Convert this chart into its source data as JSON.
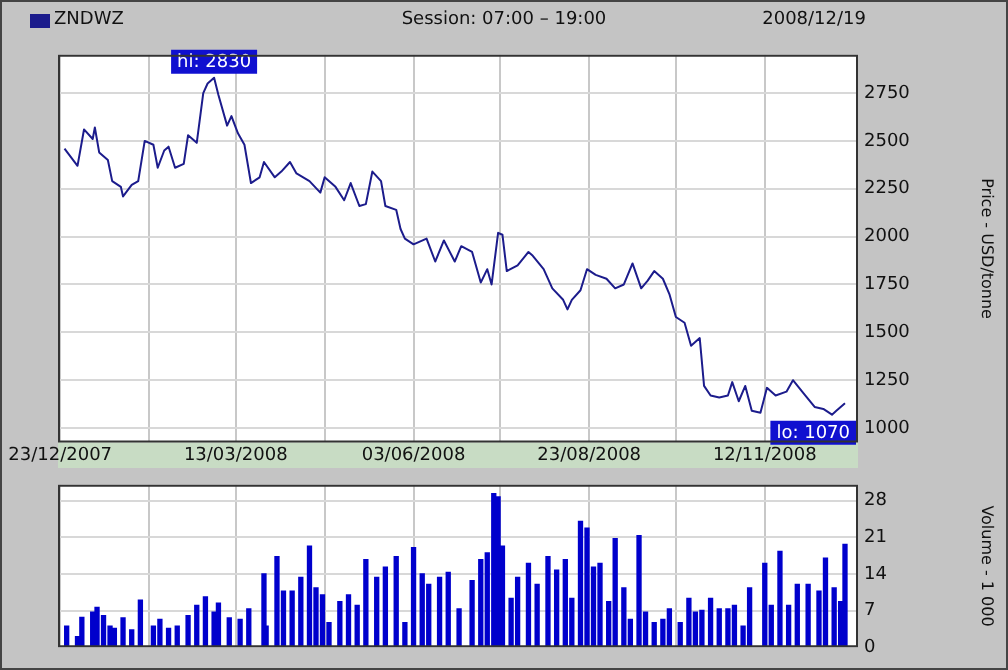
{
  "chart_data": [
    {
      "type": "line",
      "subtitle": "Session: 07:00 – 19:00",
      "ylabel": "Price - USD/tonne",
      "legend": "top left",
      "grid": true,
      "marker": "none",
      "line_style": "solid",
      "annotations": [
        "2008/12/19",
        {
          "text": "hi: 2830",
          "x": "2008-03-03",
          "y": 2830
        },
        {
          "text": "lo: 1070",
          "x": "2008-12-13",
          "y": 1070
        }
      ],
      "xlim": [
        "2007-12-22",
        "2008-12-25"
      ],
      "xticks": [
        {
          "value": "2007-12-23",
          "label": "23/12/2007"
        },
        {
          "value": "2008-02-02",
          "label": null
        },
        {
          "value": "2008-03-13",
          "label": "13/03/2008"
        },
        {
          "value": "2008-04-23",
          "label": null
        },
        {
          "value": "2008-06-03",
          "label": "03/06/2008"
        },
        {
          "value": "2008-07-13",
          "label": null
        },
        {
          "value": "2008-08-23",
          "label": "23/08/2008"
        },
        {
          "value": "2008-10-02",
          "label": null
        },
        {
          "value": "2008-11-12",
          "label": "12/11/2008"
        }
      ],
      "ylim": [
        925,
        2950
      ],
      "yticks": [
        1000,
        1250,
        1500,
        1750,
        2000,
        2250,
        2500,
        2750
      ],
      "series": [
        {
          "name": "ZNDWZ",
          "color": "#1c1c8c",
          "x": [
            "2007-12-25",
            "2007-12-31",
            "2008-01-03",
            "2008-01-07",
            "2008-01-08",
            "2008-01-10",
            "2008-01-14",
            "2008-01-16",
            "2008-01-20",
            "2008-01-21",
            "2008-01-25",
            "2008-01-28",
            "2008-01-31",
            "2008-02-04",
            "2008-02-06",
            "2008-02-09",
            "2008-02-11",
            "2008-02-14",
            "2008-02-18",
            "2008-02-20",
            "2008-02-24",
            "2008-02-27",
            "2008-02-29",
            "2008-03-03",
            "2008-03-05",
            "2008-03-09",
            "2008-03-11",
            "2008-03-14",
            "2008-03-17",
            "2008-03-20",
            "2008-03-24",
            "2008-03-26",
            "2008-03-31",
            "2008-04-03",
            "2008-04-07",
            "2008-04-10",
            "2008-04-16",
            "2008-04-21",
            "2008-04-23",
            "2008-04-28",
            "2008-05-02",
            "2008-05-05",
            "2008-05-09",
            "2008-05-12",
            "2008-05-15",
            "2008-05-19",
            "2008-05-21",
            "2008-05-26",
            "2008-05-28",
            "2008-05-30",
            "2008-06-03",
            "2008-06-09",
            "2008-06-13",
            "2008-06-17",
            "2008-06-22",
            "2008-06-25",
            "2008-06-30",
            "2008-07-04",
            "2008-07-07",
            "2008-07-09",
            "2008-07-12",
            "2008-07-14",
            "2008-07-16",
            "2008-07-21",
            "2008-07-26",
            "2008-07-28",
            "2008-08-02",
            "2008-08-06",
            "2008-08-11",
            "2008-08-13",
            "2008-08-15",
            "2008-08-19",
            "2008-08-22",
            "2008-08-26",
            "2008-08-31",
            "2008-09-04",
            "2008-09-08",
            "2008-09-12",
            "2008-09-16",
            "2008-09-19",
            "2008-09-22",
            "2008-09-26",
            "2008-09-29",
            "2008-10-02",
            "2008-10-06",
            "2008-10-09",
            "2008-10-13",
            "2008-10-15",
            "2008-10-18",
            "2008-10-22",
            "2008-10-26",
            "2008-10-28",
            "2008-10-31",
            "2008-11-03",
            "2008-11-06",
            "2008-11-10",
            "2008-11-13",
            "2008-11-17",
            "2008-11-22",
            "2008-11-25",
            "2008-11-30",
            "2008-12-05",
            "2008-12-09",
            "2008-12-13",
            "2008-12-15",
            "2008-12-19"
          ],
          "values": [
            2460,
            2370,
            2560,
            2510,
            2570,
            2440,
            2400,
            2290,
            2260,
            2210,
            2270,
            2290,
            2500,
            2480,
            2360,
            2450,
            2470,
            2360,
            2380,
            2530,
            2490,
            2750,
            2800,
            2830,
            2740,
            2580,
            2630,
            2540,
            2480,
            2280,
            2310,
            2390,
            2310,
            2340,
            2390,
            2330,
            2290,
            2230,
            2310,
            2260,
            2190,
            2280,
            2160,
            2170,
            2340,
            2290,
            2160,
            2140,
            2040,
            1990,
            1960,
            1990,
            1870,
            1980,
            1870,
            1950,
            1920,
            1760,
            1830,
            1750,
            2020,
            2010,
            1820,
            1850,
            1920,
            1900,
            1830,
            1730,
            1670,
            1620,
            1670,
            1720,
            1830,
            1800,
            1780,
            1730,
            1750,
            1860,
            1730,
            1770,
            1820,
            1780,
            1700,
            1580,
            1550,
            1430,
            1470,
            1220,
            1170,
            1160,
            1170,
            1240,
            1140,
            1220,
            1090,
            1080,
            1210,
            1170,
            1190,
            1250,
            1180,
            1110,
            1100,
            1070,
            1090,
            1130
          ]
        }
      ]
    },
    {
      "type": "bar",
      "ylabel": "Volume - 1 000",
      "grid": true,
      "tick_labels": "y",
      "color": "#0000cc",
      "xlim": [
        "2007-12-22",
        "2008-12-25"
      ],
      "xticks": [
        {
          "value": "2007-12-23",
          "label": null
        },
        {
          "value": "2008-02-02",
          "label": null
        },
        {
          "value": "2008-03-13",
          "label": null
        },
        {
          "value": "2008-04-23",
          "label": null
        },
        {
          "value": "2008-06-03",
          "label": null
        },
        {
          "value": "2008-07-13",
          "label": null
        },
        {
          "value": "2008-08-23",
          "label": null
        },
        {
          "value": "2008-10-02",
          "label": null
        },
        {
          "value": "2008-11-12",
          "label": null
        }
      ],
      "ylim": [
        0,
        31
      ],
      "yticks": [
        0,
        7,
        14,
        21,
        28
      ],
      "x": [
        "2007-12-26",
        "2007-12-31",
        "2008-01-02",
        "2008-01-07",
        "2008-01-09",
        "2008-01-12",
        "2008-01-15",
        "2008-01-17",
        "2008-01-21",
        "2008-01-25",
        "2008-01-29",
        "2008-02-04",
        "2008-02-07",
        "2008-02-11",
        "2008-02-15",
        "2008-02-20",
        "2008-02-24",
        "2008-02-28",
        "2008-03-03",
        "2008-03-05",
        "2008-03-10",
        "2008-03-15",
        "2008-03-19",
        "2008-03-26",
        "2008-03-27",
        "2008-04-01",
        "2008-04-04",
        "2008-04-08",
        "2008-04-12",
        "2008-04-16",
        "2008-04-19",
        "2008-04-22",
        "2008-04-25",
        "2008-04-30",
        "2008-05-04",
        "2008-05-08",
        "2008-05-12",
        "2008-05-17",
        "2008-05-21",
        "2008-05-26",
        "2008-05-30",
        "2008-06-03",
        "2008-06-07",
        "2008-06-10",
        "2008-06-15",
        "2008-06-19",
        "2008-06-24",
        "2008-06-30",
        "2008-07-04",
        "2008-07-07",
        "2008-07-10",
        "2008-07-12",
        "2008-07-14",
        "2008-07-18",
        "2008-07-21",
        "2008-07-26",
        "2008-07-30",
        "2008-08-04",
        "2008-08-08",
        "2008-08-12",
        "2008-08-15",
        "2008-08-19",
        "2008-08-22",
        "2008-08-25",
        "2008-08-28",
        "2008-09-01",
        "2008-09-04",
        "2008-09-08",
        "2008-09-11",
        "2008-09-15",
        "2008-09-18",
        "2008-09-22",
        "2008-09-26",
        "2008-09-29",
        "2008-10-04",
        "2008-10-08",
        "2008-10-11",
        "2008-10-14",
        "2008-10-18",
        "2008-10-22",
        "2008-10-26",
        "2008-10-29",
        "2008-11-02",
        "2008-11-05",
        "2008-11-12",
        "2008-11-15",
        "2008-11-19",
        "2008-11-23",
        "2008-11-27",
        "2008-12-02",
        "2008-12-07",
        "2008-12-10",
        "2008-12-14",
        "2008-12-17",
        "2008-12-19"
      ],
      "values": [
        4,
        2,
        5.7,
        6.7,
        7.6,
        6,
        4,
        3.6,
        5.6,
        3.3,
        9,
        4,
        5.3,
        3.6,
        4,
        6,
        8,
        9.6,
        6.7,
        8.4,
        5.6,
        5.3,
        7.3,
        14,
        4,
        17.3,
        10.7,
        10.7,
        13.3,
        19.3,
        11.3,
        10,
        4.7,
        8.7,
        10,
        8,
        16.7,
        13.3,
        15.3,
        17.3,
        4.7,
        19,
        14,
        12,
        13.3,
        14.3,
        7.3,
        12.7,
        16.7,
        18,
        29.3,
        28.7,
        19.3,
        9.3,
        13.3,
        16,
        12,
        17.3,
        14.7,
        16.7,
        9.3,
        24,
        22.7,
        15.3,
        16,
        8.7,
        20.7,
        11.3,
        5.3,
        21.3,
        6.7,
        4.7,
        5.3,
        7.3,
        4.7,
        9.3,
        6.7,
        7,
        9.3,
        7.3,
        7.3,
        8,
        4,
        11.3,
        16,
        8,
        18.3,
        8,
        12,
        12,
        10.7,
        17,
        11.3,
        8.7,
        19.6
      ]
    }
  ]
}
